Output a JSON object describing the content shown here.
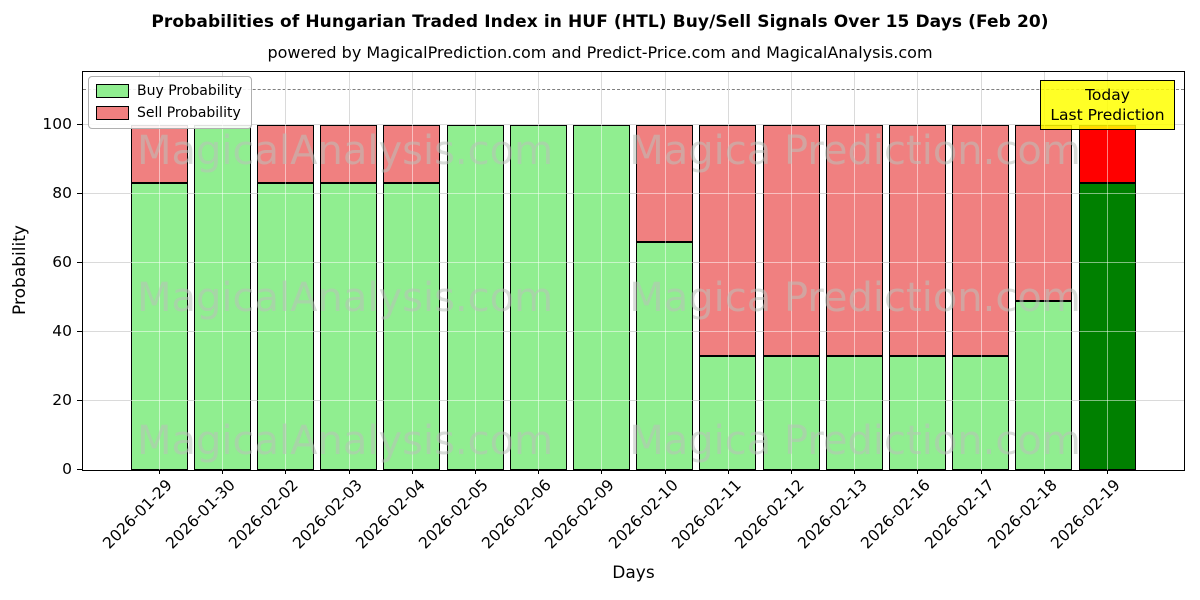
{
  "chart_data": {
    "type": "bar",
    "stacked": true,
    "title": "Probabilities of Hungarian Traded Index in HUF (HTL) Buy/Sell Signals Over 15 Days (Feb 20)",
    "subtitle": "powered by MagicalPrediction.com and Predict-Price.com and MagicalAnalysis.com",
    "xlabel": "Days",
    "ylabel": "Probability",
    "categories": [
      "2026-01-29",
      "2026-01-30",
      "2026-02-02",
      "2026-02-03",
      "2026-02-04",
      "2026-02-05",
      "2026-02-06",
      "2026-02-09",
      "2026-02-10",
      "2026-02-11",
      "2026-02-12",
      "2026-02-13",
      "2026-02-16",
      "2026-02-17",
      "2026-02-18",
      "2026-02-19"
    ],
    "series": [
      {
        "name": "Buy Probability",
        "color": "#90EE90",
        "values": [
          83,
          100,
          83,
          83,
          83,
          100,
          100,
          100,
          66,
          33,
          33,
          33,
          33,
          33,
          49,
          83
        ]
      },
      {
        "name": "Sell Probability",
        "color": "#F08080",
        "values": [
          17,
          0,
          17,
          17,
          17,
          0,
          0,
          0,
          34,
          67,
          67,
          67,
          67,
          67,
          51,
          17
        ]
      }
    ],
    "highlight_last_bar": {
      "buy_color": "#008000",
      "sell_color": "#FF0000"
    },
    "ylim": [
      0,
      115
    ],
    "yticks": [
      0,
      20,
      40,
      60,
      80,
      100
    ],
    "dashed_hline": 110,
    "grid": true,
    "legend_position": "upper left"
  },
  "annotation": {
    "line1": "Today",
    "line2": "Last Prediction",
    "bg_color": "#FFFF00"
  },
  "watermarks": {
    "left": "MagicalAnalysis.com",
    "right": "Magica Prediction.com"
  }
}
